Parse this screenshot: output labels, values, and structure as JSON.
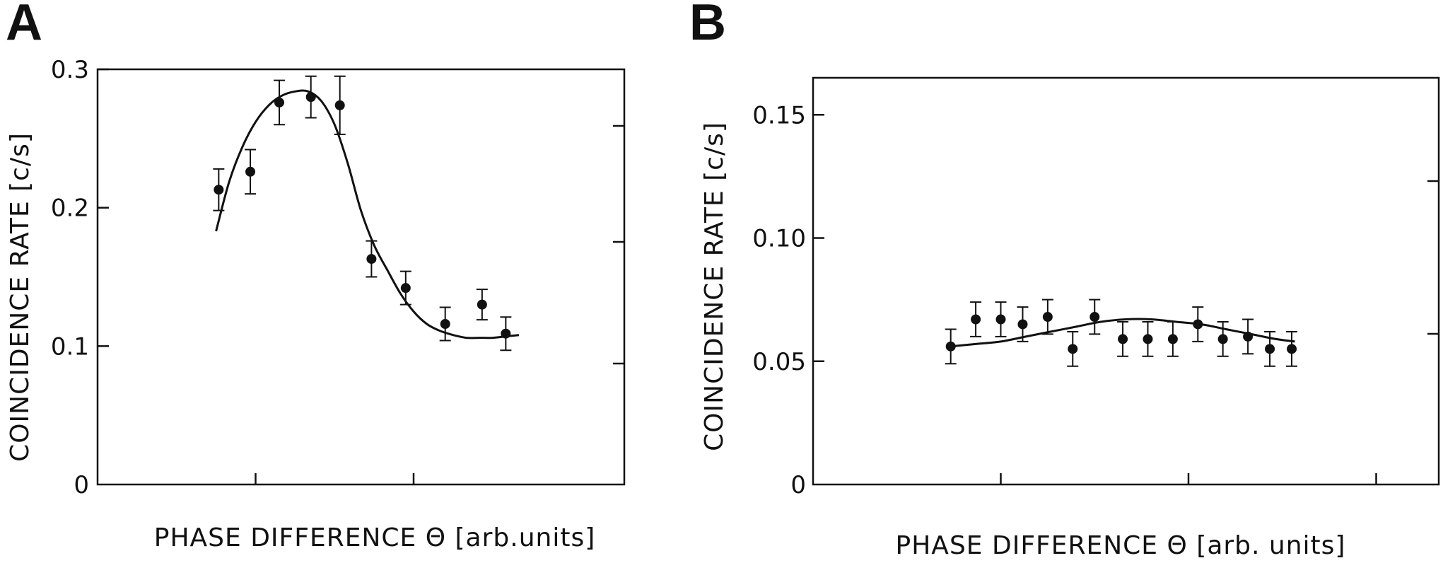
{
  "chart_data": [
    {
      "panel": "A",
      "type": "scatter",
      "xlabel": "PHASE DIFFERENCE Θ [arb.units]",
      "ylabel": "COINCIDENCE RATE [c/s]",
      "xlim": [
        0,
        10
      ],
      "ylim": [
        0,
        0.3
      ],
      "y_ticks": [
        0,
        0.1,
        0.2,
        0.3
      ],
      "y_tick_labels": [
        "0",
        "0.1",
        "0.2",
        "0.3"
      ],
      "x_ticks": [
        3,
        6
      ],
      "grid": false,
      "series": [
        {
          "type": "points_with_error",
          "x": [
            2.3,
            2.9,
            3.45,
            4.05,
            4.6,
            5.2,
            5.85,
            6.6,
            7.3,
            7.75
          ],
          "y": [
            0.213,
            0.226,
            0.276,
            0.28,
            0.274,
            0.163,
            0.142,
            0.116,
            0.13,
            0.109
          ],
          "err": [
            0.015,
            0.016,
            0.016,
            0.015,
            0.021,
            0.013,
            0.012,
            0.012,
            0.011,
            0.012
          ]
        },
        {
          "type": "fit_line",
          "x": [
            2.25,
            2.5,
            2.75,
            3.0,
            3.25,
            3.5,
            3.75,
            4.0,
            4.25,
            4.5,
            4.75,
            5.0,
            5.25,
            5.5,
            5.75,
            6.0,
            6.25,
            6.5,
            6.75,
            7.0,
            7.25,
            7.5,
            7.75,
            8.0
          ],
          "y": [
            0.183,
            0.219,
            0.244,
            0.262,
            0.274,
            0.281,
            0.284,
            0.284,
            0.277,
            0.26,
            0.232,
            0.198,
            0.173,
            0.155,
            0.138,
            0.125,
            0.116,
            0.111,
            0.108,
            0.106,
            0.106,
            0.106,
            0.107,
            0.108
          ]
        }
      ]
    },
    {
      "panel": "B",
      "type": "scatter",
      "xlabel": "PHASE DIFFERENCE Θ [arb. units]",
      "ylabel": "COINCIDENCE RATE [c/s]",
      "xlim": [
        0,
        10
      ],
      "ylim": [
        0,
        0.165
      ],
      "y_ticks": [
        0,
        0.05,
        0.1,
        0.15
      ],
      "y_tick_labels": [
        "0",
        "0.05",
        "0.10",
        "0.15"
      ],
      "x_ticks": [
        3,
        6,
        9
      ],
      "grid": false,
      "series": [
        {
          "type": "points_with_error",
          "x": [
            2.2,
            2.6,
            3.0,
            3.35,
            3.75,
            4.15,
            4.5,
            4.95,
            5.35,
            5.75,
            6.15,
            6.55,
            6.95,
            7.3,
            7.65
          ],
          "y": [
            0.056,
            0.067,
            0.067,
            0.065,
            0.068,
            0.055,
            0.068,
            0.059,
            0.059,
            0.059,
            0.065,
            0.059,
            0.06,
            0.055,
            0.055
          ],
          "err": [
            0.007,
            0.007,
            0.007,
            0.007,
            0.007,
            0.007,
            0.007,
            0.007,
            0.007,
            0.007,
            0.007,
            0.007,
            0.007,
            0.007,
            0.007
          ]
        },
        {
          "type": "fit_line",
          "x": [
            2.2,
            2.6,
            3.0,
            3.4,
            3.8,
            4.2,
            4.6,
            5.0,
            5.4,
            5.8,
            6.2,
            6.6,
            7.0,
            7.4,
            7.7
          ],
          "y": [
            0.056,
            0.057,
            0.058,
            0.06,
            0.062,
            0.064,
            0.066,
            0.067,
            0.067,
            0.066,
            0.065,
            0.063,
            0.061,
            0.059,
            0.058
          ]
        }
      ]
    }
  ]
}
